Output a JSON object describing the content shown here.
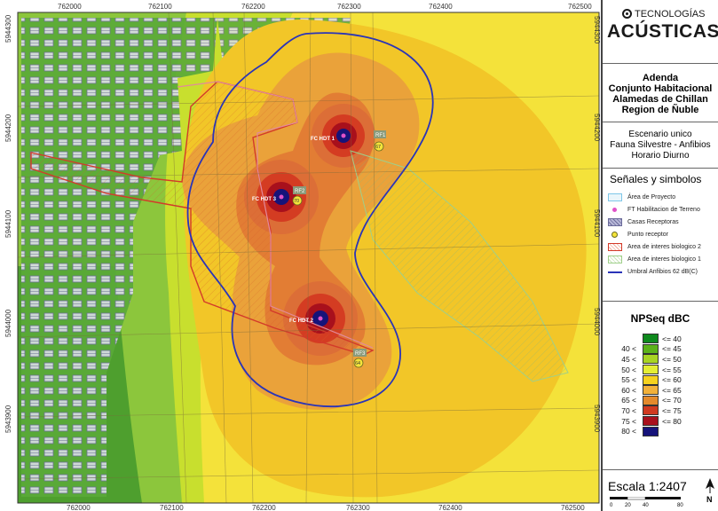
{
  "map": {
    "x_ticks": [
      "762000",
      "762100",
      "762200",
      "762300",
      "762400",
      "762500"
    ],
    "y_ticks": [
      "5944300",
      "5944200",
      "5944100",
      "5944000",
      "5943900"
    ],
    "sources": [
      {
        "label": "FC HDT 1"
      },
      {
        "label": "FC HDT 3"
      },
      {
        "label": "FC HDT 2"
      }
    ],
    "receivers": [
      {
        "id": "RF1",
        "value": "67"
      },
      {
        "id": "RF2",
        "value": "70"
      },
      {
        "id": "RF3",
        "value": "64"
      }
    ]
  },
  "panel": {
    "logo_top": "TECNOLOGÍAS",
    "logo_bottom": "ACÚSTICAS",
    "title_lines": [
      "Adenda",
      "Conjunto Habitacional",
      "Alamedas de Chillan",
      "Region de Ñuble"
    ],
    "scenario_lines": [
      "Escenario unico",
      "Fauna Silvestre - Anfibios",
      "Horario Diurno"
    ],
    "legend_title": "Señales y simbolos",
    "legend_items": [
      {
        "label": "Área de Proyecto",
        "symbol": "project-area"
      },
      {
        "label": "FT Habilitacion de Terreno",
        "symbol": "source-point"
      },
      {
        "label": "Casas Receptoras",
        "symbol": "receptor-houses"
      },
      {
        "label": "Punto receptor",
        "symbol": "receiver-point"
      },
      {
        "label": "Area de interes biologico 2",
        "symbol": "bio-area-2"
      },
      {
        "label": "Area de interes biologico 1",
        "symbol": "bio-area-1"
      },
      {
        "label": "Umbral Anfibios 62 dB(C)",
        "symbol": "threshold-line"
      }
    ],
    "nps_title": "NPSeq dBC",
    "nps_rows": [
      {
        "lo": "",
        "hi": "<= 40",
        "color": "#0f8a1e"
      },
      {
        "lo": "40 <",
        "hi": "<= 45",
        "color": "#5cb21a"
      },
      {
        "lo": "45 <",
        "hi": "<= 50",
        "color": "#a8d424"
      },
      {
        "lo": "50 <",
        "hi": "<= 55",
        "color": "#e4ee34"
      },
      {
        "lo": "55 <",
        "hi": "<= 60",
        "color": "#f6d21e"
      },
      {
        "lo": "60 <",
        "hi": "<= 65",
        "color": "#f2b13a"
      },
      {
        "lo": "65 <",
        "hi": "<= 70",
        "color": "#e48a2c"
      },
      {
        "lo": "70 <",
        "hi": "<= 75",
        "color": "#d03a20"
      },
      {
        "lo": "75 <",
        "hi": "<= 80",
        "color": "#a8101c"
      },
      {
        "lo": "80 <",
        "hi": "",
        "color": "#16137a"
      }
    ],
    "scale_label": "Escala 1:2407",
    "scale_ticks": [
      "0",
      "20",
      "40",
      "80"
    ]
  }
}
